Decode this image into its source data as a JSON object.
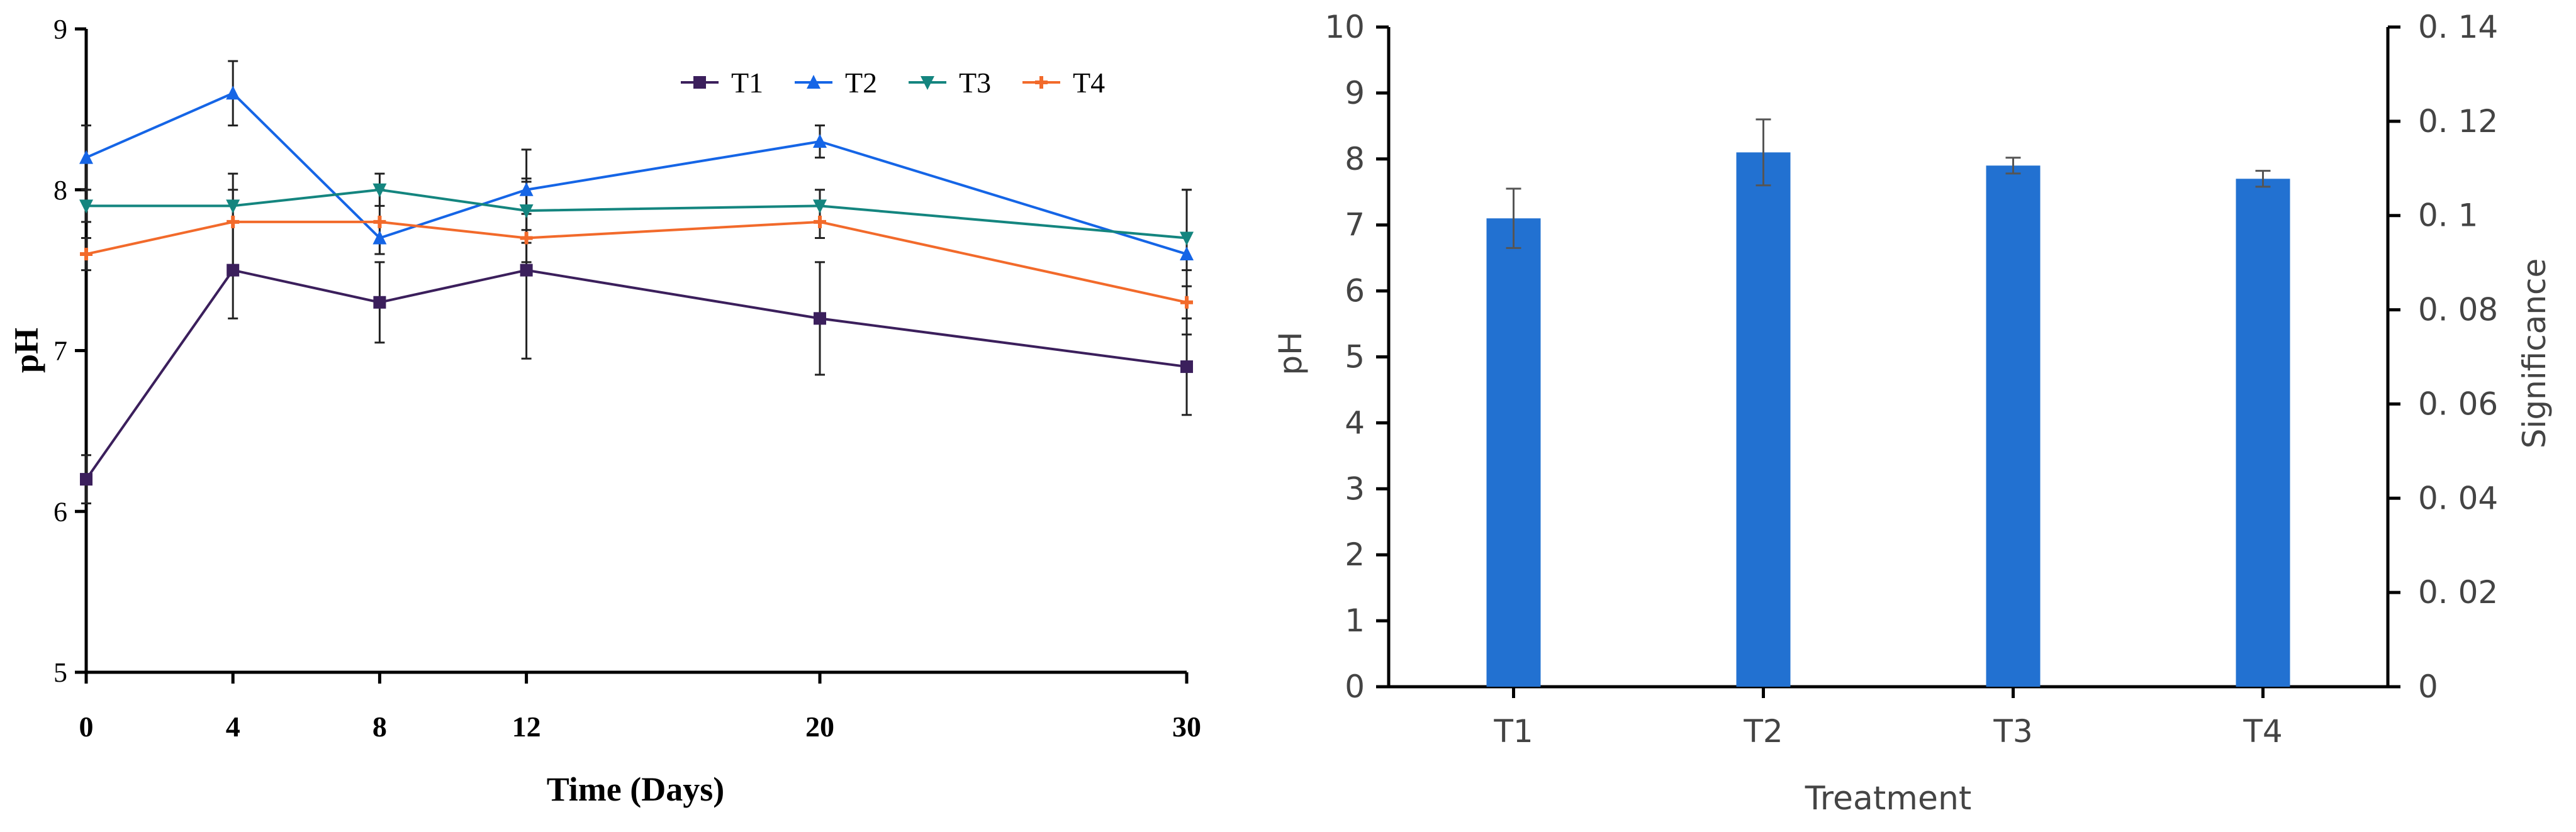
{
  "chart_data": [
    {
      "type": "line",
      "title": "",
      "xlabel": "Time (Days)",
      "ylabel": "pH",
      "x": [
        0,
        4,
        8,
        12,
        20,
        30
      ],
      "x_ticks": [
        "0",
        "4",
        "8",
        "12",
        "20",
        "30"
      ],
      "xlim": [
        0,
        30
      ],
      "y_ticks": [
        "5",
        "6",
        "7",
        "8",
        "9"
      ],
      "ylim": [
        5,
        9
      ],
      "grid": false,
      "legend_position": "top-right",
      "series": [
        {
          "name": "T1",
          "color": "#3b1f5c",
          "marker": "square",
          "values": [
            6.2,
            7.5,
            7.3,
            7.5,
            7.2,
            6.9
          ],
          "errors": [
            0.15,
            0.3,
            0.25,
            0.55,
            0.35,
            0.3
          ]
        },
        {
          "name": "T2",
          "color": "#1565e6",
          "marker": "triangle-up",
          "values": [
            8.2,
            8.6,
            7.7,
            8.0,
            8.3,
            7.6
          ],
          "errors": [
            0.2,
            0.2,
            0.1,
            0.25,
            0.1,
            0.4
          ]
        },
        {
          "name": "T3",
          "color": "#14857f",
          "marker": "triangle-down",
          "values": [
            7.9,
            7.9,
            8.0,
            7.87,
            7.9,
            7.7
          ],
          "errors": [
            0.1,
            0.1,
            0.1,
            0.2,
            0.1,
            0.3
          ]
        },
        {
          "name": "T4",
          "color": "#f26a2b",
          "marker": "plus",
          "values": [
            7.6,
            7.8,
            7.8,
            7.7,
            7.8,
            7.3
          ],
          "errors": [
            0.1,
            0.3,
            0.2,
            0.15,
            0.1,
            0.2
          ]
        }
      ]
    },
    {
      "type": "bar",
      "title": "",
      "xlabel": "Treatment",
      "ylabel": "pH",
      "y2label": "Significance",
      "categories": [
        "T1",
        "T2",
        "T3",
        "T4"
      ],
      "values": [
        7.1,
        8.1,
        7.9,
        7.7
      ],
      "errors": [
        0.45,
        0.5,
        0.12,
        0.12
      ],
      "bar_color": "#2271d1",
      "ylim": [
        0,
        10
      ],
      "y_ticks": [
        "0",
        "1",
        "2",
        "3",
        "4",
        "5",
        "6",
        "7",
        "8",
        "9",
        "10"
      ],
      "y2lim": [
        0,
        0.14
      ],
      "y2_ticks": [
        "0",
        "0. 02",
        "0. 04",
        "0. 06",
        "0. 08",
        "0. 1",
        "0. 12",
        "0. 14"
      ],
      "grid": false
    }
  ]
}
